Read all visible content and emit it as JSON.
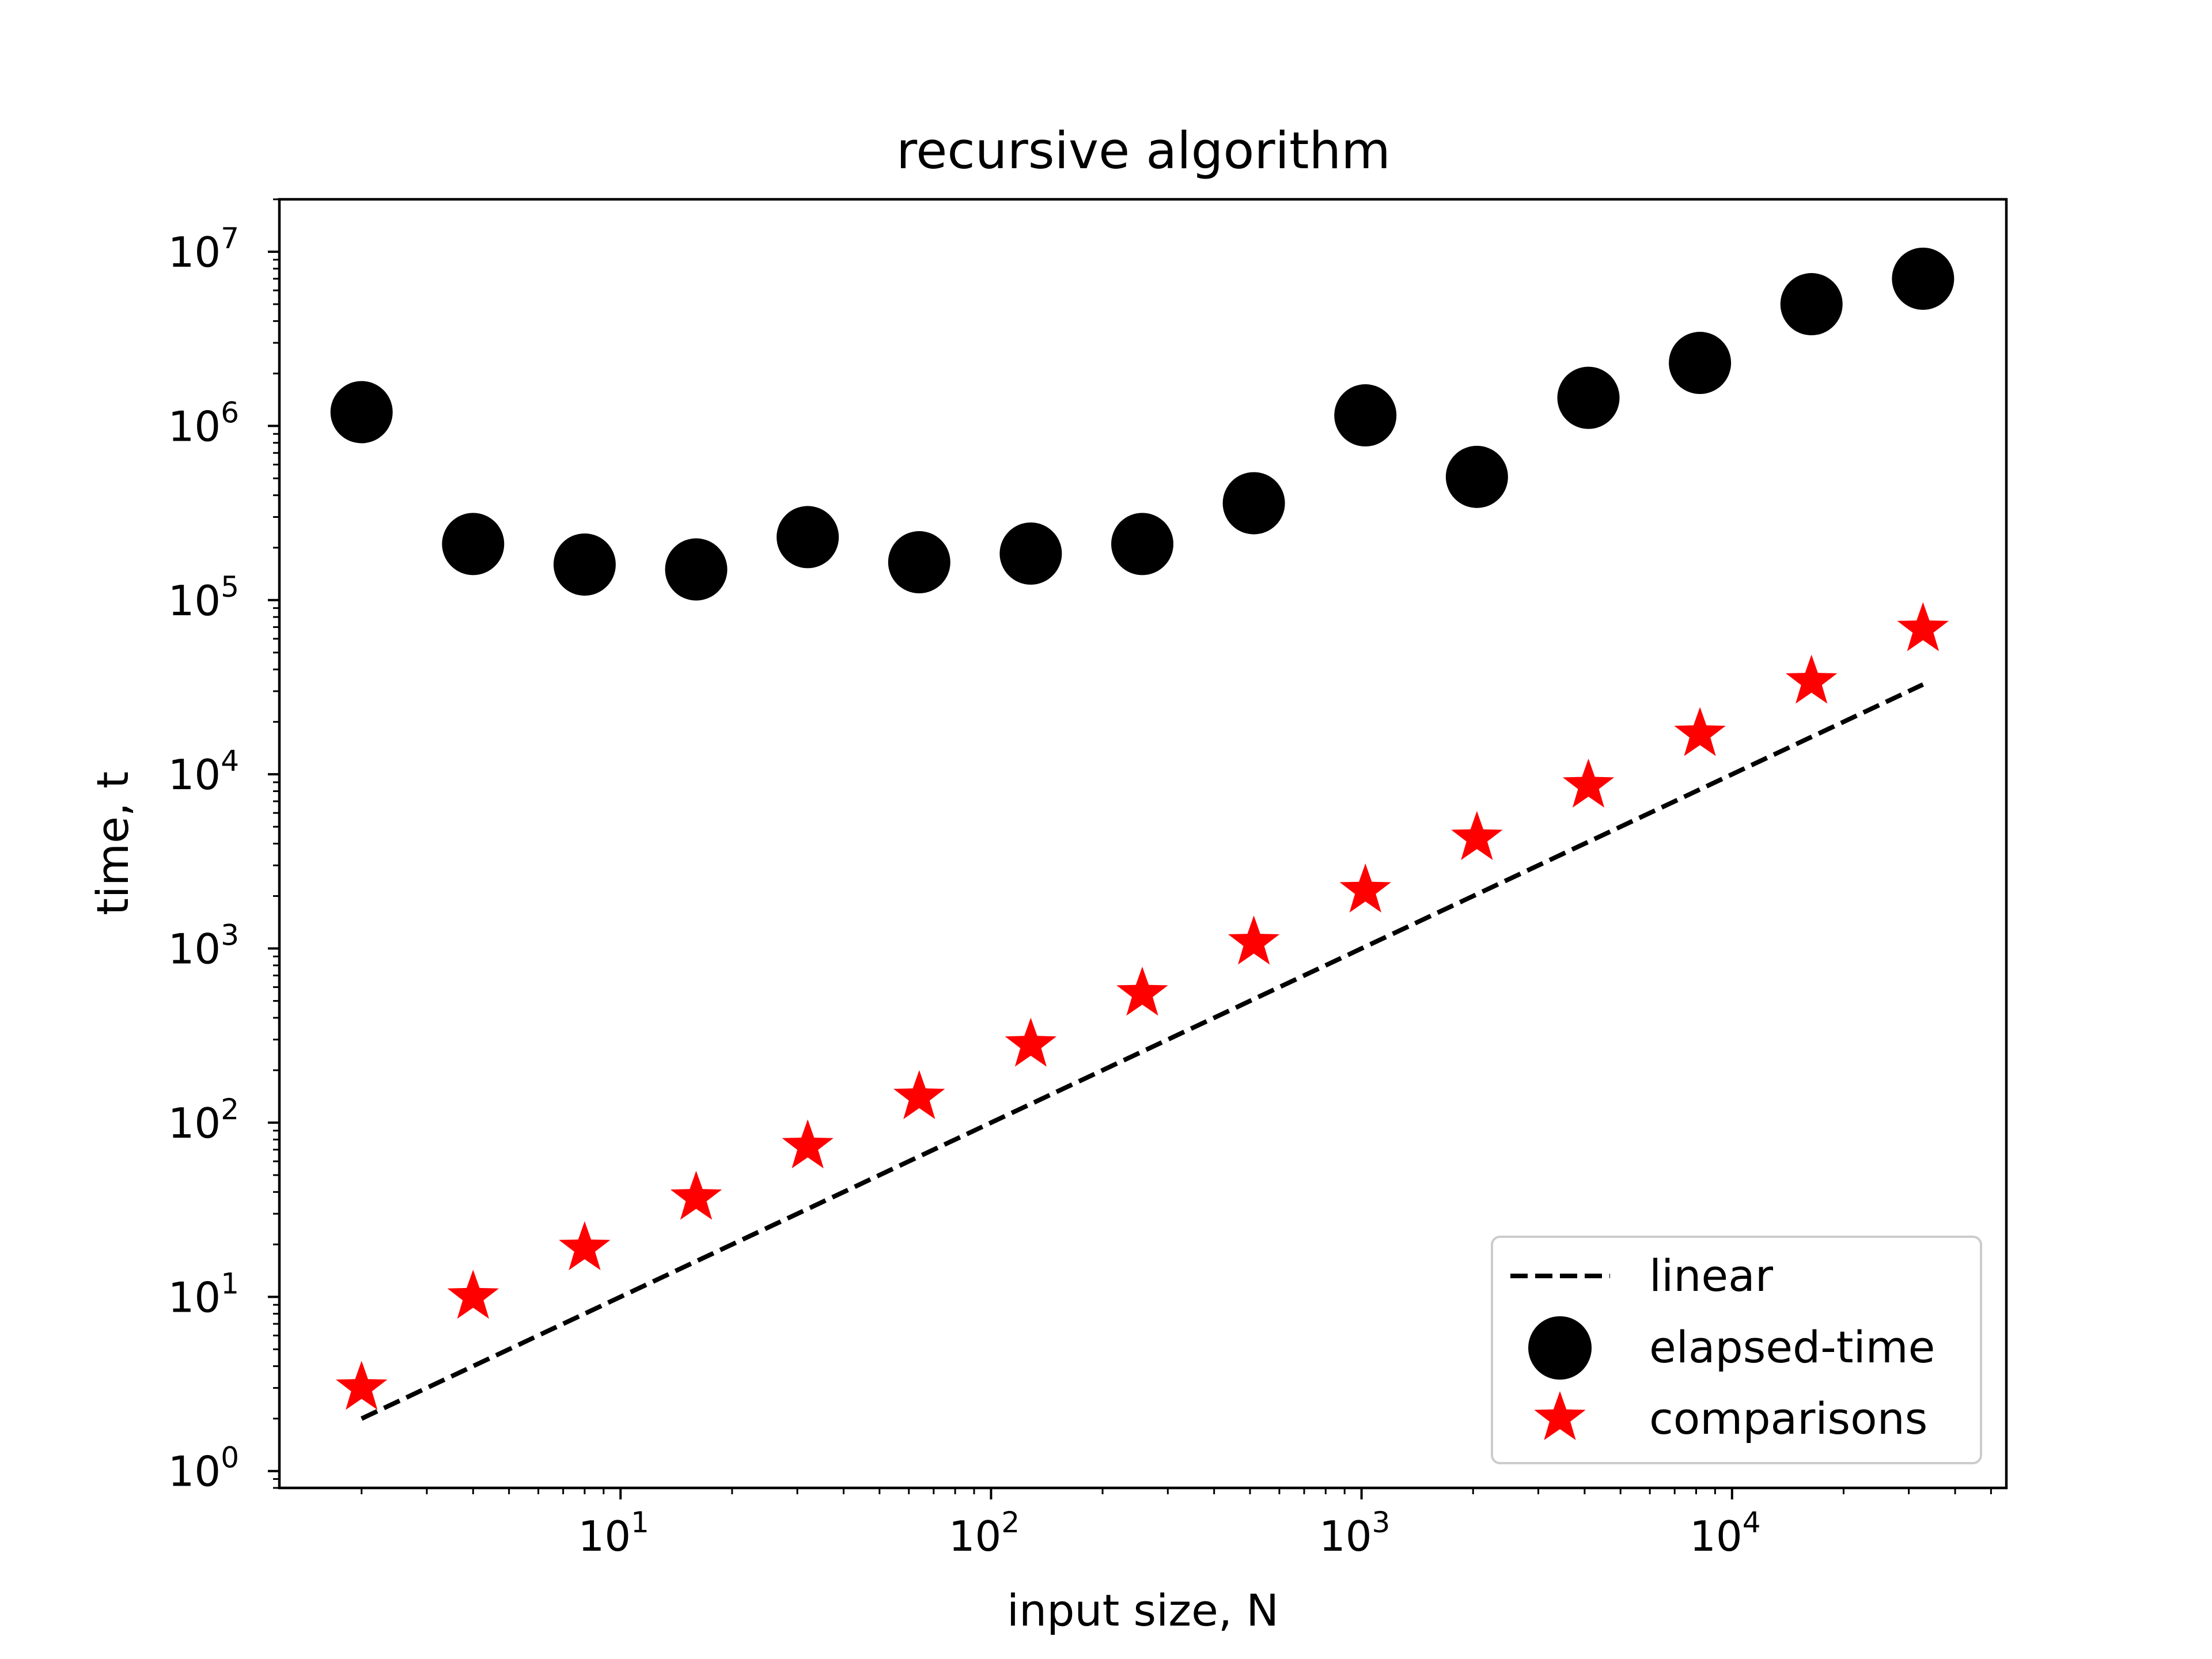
{
  "chart_data": {
    "type": "scatter",
    "title": "recursive algorithm",
    "xlabel": "input size, N",
    "ylabel": "time, t",
    "x_scale": "log",
    "y_scale": "log",
    "xlim": [
      1.2,
      55000
    ],
    "ylim": [
      0.8,
      20000000
    ],
    "x_ticks": [
      {
        "value": 10,
        "base": "10",
        "exp": "1"
      },
      {
        "value": 100,
        "base": "10",
        "exp": "2"
      },
      {
        "value": 1000,
        "base": "10",
        "exp": "3"
      },
      {
        "value": 10000,
        "base": "10",
        "exp": "4"
      }
    ],
    "y_ticks": [
      {
        "value": 1,
        "base": "10",
        "exp": "0"
      },
      {
        "value": 10,
        "base": "10",
        "exp": "1"
      },
      {
        "value": 100,
        "base": "10",
        "exp": "2"
      },
      {
        "value": 1000,
        "base": "10",
        "exp": "3"
      },
      {
        "value": 10000,
        "base": "10",
        "exp": "4"
      },
      {
        "value": 100000,
        "base": "10",
        "exp": "5"
      },
      {
        "value": 1000000,
        "base": "10",
        "exp": "6"
      },
      {
        "value": 10000000,
        "base": "10",
        "exp": "7"
      }
    ],
    "grid": false,
    "legend_position": "lower right",
    "x": [
      2,
      4,
      8,
      16,
      32,
      64,
      128,
      256,
      512,
      1024,
      2048,
      4096,
      8192,
      16384,
      32768
    ],
    "series": [
      {
        "name": "linear",
        "style": "dashed-line",
        "color": "#000000",
        "values": [
          2,
          4,
          8,
          16,
          32,
          64,
          128,
          256,
          512,
          1024,
          2048,
          4096,
          8192,
          16384,
          32768
        ]
      },
      {
        "name": "elapsed-time",
        "style": "circle-marker",
        "color": "#000000",
        "values": [
          1200000,
          210000,
          160000,
          150000,
          230000,
          165000,
          185000,
          210000,
          360000,
          1150000,
          510000,
          1450000,
          2300000,
          5000000,
          7000000
        ]
      },
      {
        "name": "comparisons",
        "style": "star-marker",
        "color": "#ff0000",
        "values": [
          3,
          10,
          19,
          37,
          73,
          140,
          280,
          550,
          1080,
          2150,
          4300,
          8600,
          17000,
          34000,
          68000
        ]
      }
    ]
  }
}
